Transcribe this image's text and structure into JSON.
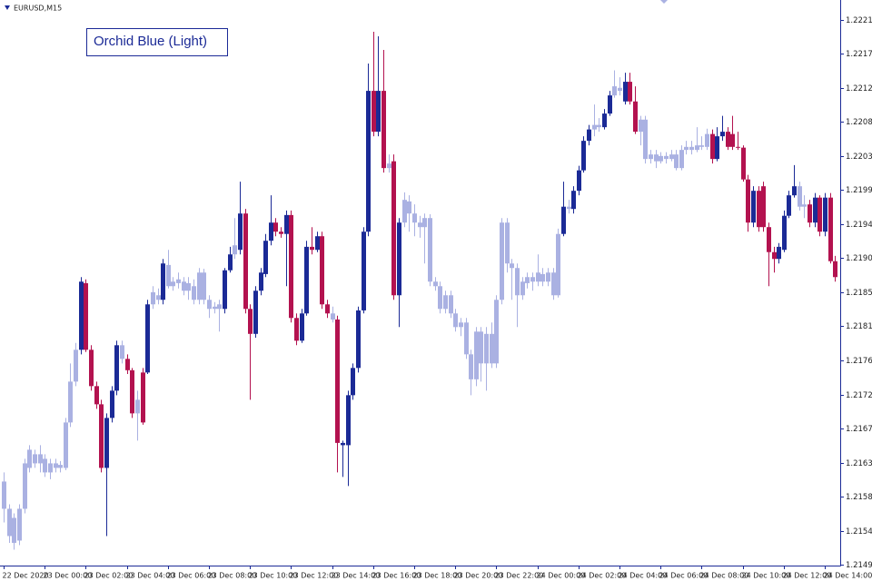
{
  "chart_data": {
    "type": "candlestick",
    "symbol": "EURUSD,M15",
    "title": "Orchid Blue (Light)",
    "categories": [
      "22 Dec 2020",
      null,
      null,
      null,
      null,
      null,
      null,
      null,
      "23 Dec 00:00",
      null,
      null,
      null,
      null,
      null,
      null,
      null,
      "23 Dec 02:00",
      null,
      null,
      null,
      null,
      null,
      null,
      null,
      "23 Dec 04:00",
      null,
      null,
      null,
      null,
      null,
      null,
      null,
      "23 Dec 06:00",
      null,
      null,
      null,
      null,
      null,
      null,
      null,
      "23 Dec 08:00",
      null,
      null,
      null,
      null,
      null,
      null,
      null,
      "23 Dec 10:00",
      null,
      null,
      null,
      null,
      null,
      null,
      null,
      "23 Dec 12:00",
      null,
      null,
      null,
      null,
      null,
      null,
      null,
      "23 Dec 14:00",
      null,
      null,
      null,
      null,
      null,
      null,
      null,
      "23 Dec 16:00",
      null,
      null,
      null,
      null,
      null,
      null,
      null,
      "23 Dec 18:00",
      null,
      null,
      null,
      null,
      null,
      null,
      null,
      "23 Dec 20:00",
      null,
      null,
      null,
      null,
      null,
      null,
      null,
      "23 Dec 22:00",
      null,
      null,
      null,
      null,
      null,
      null,
      null,
      "24 Dec 00:00",
      null,
      null,
      null,
      null,
      null,
      null,
      null,
      "24 Dec 02:00",
      null,
      null,
      null,
      null,
      null,
      null,
      null,
      "24 Dec 04:00",
      null,
      null,
      null,
      null,
      null,
      null,
      null,
      "24 Dec 06:00",
      null,
      null,
      null,
      null,
      null,
      null,
      null,
      "24 Dec 08:00",
      null,
      null,
      null,
      null,
      null,
      null,
      null,
      "24 Dec 10:00",
      null,
      null,
      null,
      null,
      null,
      null,
      null,
      "24 Dec 12:00",
      null,
      null,
      null,
      null,
      null,
      null,
      null,
      "24 Dec 14:00",
      null,
      null
    ],
    "values": [
      [
        1.21569,
        1.21617,
        1.21551,
        1.21605
      ],
      [
        1.21533,
        1.21575,
        1.21524,
        1.21569
      ],
      [
        1.21524,
        1.21563,
        1.21515,
        1.21557
      ],
      [
        1.21527,
        1.21575,
        1.21521,
        1.21569
      ],
      [
        1.21569,
        1.21635,
        1.21563,
        1.21629
      ],
      [
        1.21623,
        1.21653,
        1.21617,
        1.21647
      ],
      [
        1.21641,
        1.21647,
        1.21623,
        1.21629
      ],
      [
        1.21629,
        1.21653,
        1.21617,
        1.21641
      ],
      [
        1.21635,
        1.21641,
        1.21611,
        1.21617
      ],
      [
        1.21617,
        1.21635,
        1.21608,
        1.21629
      ],
      [
        1.21623,
        1.21635,
        1.21617,
        1.21629
      ],
      [
        1.21627,
        1.21632,
        1.21617,
        1.21623
      ],
      [
        1.21623,
        1.21689,
        1.2162,
        1.21683
      ],
      [
        1.21683,
        1.21761,
        1.21677,
        1.21737
      ],
      [
        1.21737,
        1.21788,
        1.21731,
        1.21779
      ],
      [
        1.21779,
        1.21875,
        1.21773,
        1.21869
      ],
      [
        1.21867,
        1.21872,
        1.21776,
        1.21779
      ],
      [
        1.21779,
        1.21785,
        1.21725,
        1.21731
      ],
      [
        1.21731,
        1.21737,
        1.21701,
        1.21707
      ],
      [
        1.21707,
        1.21713,
        1.21617,
        1.21623
      ],
      [
        1.21623,
        1.21695,
        1.21533,
        1.21689
      ],
      [
        1.21689,
        1.21731,
        1.21683,
        1.21725
      ],
      [
        1.21725,
        1.21791,
        1.21719,
        1.21785
      ],
      [
        1.21785,
        1.21791,
        1.21761,
        1.21767
      ],
      [
        1.21767,
        1.21773,
        1.21747,
        1.21752
      ],
      [
        1.21752,
        1.21755,
        1.21689,
        1.21695
      ],
      [
        1.21695,
        1.21725,
        1.21659,
        1.21713
      ],
      [
        1.21749,
        1.21755,
        1.2168,
        1.21683
      ],
      [
        1.21749,
        1.21845,
        1.21747,
        1.21839
      ],
      [
        1.21839,
        1.21863,
        1.21833,
        1.21855
      ],
      [
        1.21851,
        1.2186,
        1.21839,
        1.21845
      ],
      [
        1.21845,
        1.21899,
        1.21839,
        1.21893
      ],
      [
        1.21891,
        1.21911,
        1.2186,
        1.21863
      ],
      [
        1.21863,
        1.21875,
        1.21857,
        1.21869
      ],
      [
        1.21867,
        1.21881,
        1.2186,
        1.21872
      ],
      [
        1.21869,
        1.21875,
        1.21851,
        1.21857
      ],
      [
        1.21857,
        1.21875,
        1.21845,
        1.21867
      ],
      [
        1.21863,
        1.21872,
        1.21839,
        1.21845
      ],
      [
        1.21845,
        1.21887,
        1.21839,
        1.21881
      ],
      [
        1.21881,
        1.21886,
        1.21839,
        1.21845
      ],
      [
        1.21845,
        1.21851,
        1.21821,
        1.21833
      ],
      [
        1.21836,
        1.21842,
        1.21827,
        1.21833
      ],
      [
        1.21833,
        1.21845,
        1.21803,
        1.21839
      ],
      [
        1.21833,
        1.21887,
        1.21827,
        1.21884
      ],
      [
        1.21884,
        1.21915,
        1.21881,
        1.21905
      ],
      [
        1.21905,
        1.21953,
        1.21899,
        1.21917
      ],
      [
        1.21911,
        1.22001,
        1.21905,
        1.21959
      ],
      [
        1.21959,
        1.21965,
        1.21827,
        1.21833
      ],
      [
        1.21833,
        1.21839,
        1.21713,
        1.218
      ],
      [
        1.218,
        1.21863,
        1.21795,
        1.21857
      ],
      [
        1.21857,
        1.21887,
        1.21851,
        1.21881
      ],
      [
        1.21879,
        1.21932,
        1.21875,
        1.21923
      ],
      [
        1.21923,
        1.21983,
        1.21917,
        1.21947
      ],
      [
        1.21947,
        1.21953,
        1.21929,
        1.21935
      ],
      [
        1.21935,
        1.21941,
        1.21927,
        1.21932
      ],
      [
        1.21932,
        1.21963,
        1.21863,
        1.21957
      ],
      [
        1.21957,
        1.21963,
        1.21815,
        1.21821
      ],
      [
        1.21821,
        1.21827,
        1.21785,
        1.21791
      ],
      [
        1.21791,
        1.21833,
        1.21788,
        1.21827
      ],
      [
        1.21827,
        1.21923,
        1.21824,
        1.21915
      ],
      [
        1.21915,
        1.21941,
        1.21905,
        1.21911
      ],
      [
        1.21911,
        1.21935,
        1.21908,
        1.21929
      ],
      [
        1.21929,
        1.21935,
        1.21833,
        1.21839
      ],
      [
        1.21839,
        1.21845,
        1.21821,
        1.21827
      ],
      [
        1.21827,
        1.21836,
        1.21815,
        1.21819
      ],
      [
        1.21819,
        1.21824,
        1.21617,
        1.21656
      ],
      [
        1.21656,
        1.21659,
        1.21611,
        1.21653
      ],
      [
        1.21653,
        1.21725,
        1.21599,
        1.21719
      ],
      [
        1.21719,
        1.21761,
        1.21713,
        1.21755
      ],
      [
        1.21755,
        1.21836,
        1.21749,
        1.21831
      ],
      [
        1.21831,
        1.21941,
        1.21827,
        1.21935
      ],
      [
        1.21935,
        1.22157,
        1.21929,
        1.22121
      ],
      [
        1.22121,
        1.22199,
        1.22061,
        1.22067
      ],
      [
        1.22067,
        1.22193,
        1.22061,
        1.22121
      ],
      [
        1.22121,
        1.22175,
        1.22013,
        1.22019
      ],
      [
        1.22019,
        1.22037,
        1.22013,
        1.22025
      ],
      [
        1.22028,
        1.22037,
        1.21845,
        1.21851
      ],
      [
        1.21851,
        1.21953,
        1.21809,
        1.21947
      ],
      [
        1.21947,
        1.21987,
        1.21941,
        1.21977
      ],
      [
        1.21975,
        1.21983,
        1.21935,
        1.21959
      ],
      [
        1.21959,
        1.21971,
        1.21929,
        1.21947
      ],
      [
        1.21947,
        1.21956,
        1.21927,
        1.21941
      ],
      [
        1.21941,
        1.21959,
        1.21893,
        1.21953
      ],
      [
        1.21953,
        1.21958,
        1.21863,
        1.21869
      ],
      [
        1.21869,
        1.21875,
        1.21857,
        1.21863
      ],
      [
        1.21863,
        1.21869,
        1.21827,
        1.21833
      ],
      [
        1.21833,
        1.21857,
        1.21827,
        1.21851
      ],
      [
        1.21851,
        1.21857,
        1.21821,
        1.21827
      ],
      [
        1.21827,
        1.21833,
        1.21803,
        1.21809
      ],
      [
        1.21809,
        1.21821,
        1.21797,
        1.21815
      ],
      [
        1.21815,
        1.21821,
        1.21767,
        1.21773
      ],
      [
        1.21773,
        1.21779,
        1.21719,
        1.2174
      ],
      [
        1.2174,
        1.21809,
        1.21731,
        1.21803
      ],
      [
        1.21803,
        1.21809,
        1.21737,
        1.21761
      ],
      [
        1.21761,
        1.21809,
        1.21725,
        1.218
      ],
      [
        1.218,
        1.21815,
        1.21755,
        1.21761
      ],
      [
        1.21761,
        1.21851,
        1.21755,
        1.21845
      ],
      [
        1.21845,
        1.21953,
        1.21839,
        1.21947
      ],
      [
        1.21947,
        1.21953,
        1.21881,
        1.21893
      ],
      [
        1.21893,
        1.21899,
        1.21845,
        1.21887
      ],
      [
        1.21887,
        1.21893,
        1.21809,
        1.21851
      ],
      [
        1.21851,
        1.21875,
        1.21845,
        1.21869
      ],
      [
        1.21867,
        1.21881,
        1.2186,
        1.21875
      ],
      [
        1.21875,
        1.21881,
        1.21857,
        1.21869
      ],
      [
        1.21869,
        1.21905,
        1.21863,
        1.21881
      ],
      [
        1.21879,
        1.21887,
        1.21863,
        1.21869
      ],
      [
        1.21869,
        1.21887,
        1.21863,
        1.21881
      ],
      [
        1.21881,
        1.21887,
        1.21845,
        1.21851
      ],
      [
        1.21851,
        1.21939,
        1.21848,
        1.21932
      ],
      [
        1.21932,
        1.22001,
        1.21929,
        1.21968
      ],
      [
        1.21968,
        1.21977,
        1.21959,
        1.21965
      ],
      [
        1.21965,
        1.21995,
        1.21959,
        1.21989
      ],
      [
        1.21989,
        1.22022,
        1.21983,
        1.22016
      ],
      [
        1.22016,
        1.22061,
        1.22013,
        1.22055
      ],
      [
        1.22055,
        1.22076,
        1.22049,
        1.2207
      ],
      [
        1.2207,
        1.22103,
        1.22061,
        1.22076
      ],
      [
        1.22076,
        1.22085,
        1.22067,
        1.22073
      ],
      [
        1.22073,
        1.22097,
        1.2207,
        1.22091
      ],
      [
        1.22091,
        1.22121,
        1.22088,
        1.22115
      ],
      [
        1.22115,
        1.22148,
        1.22112,
        1.22127
      ],
      [
        1.22125,
        1.22139,
        1.22115,
        1.22121
      ],
      [
        1.22107,
        1.22145,
        1.22103,
        1.22133
      ],
      [
        1.22133,
        1.22145,
        1.22103,
        1.22107
      ],
      [
        1.22107,
        1.22127,
        1.22064,
        1.22067
      ],
      [
        1.22067,
        1.22088,
        1.22049,
        1.22083
      ],
      [
        1.22083,
        1.22088,
        1.22025,
        1.22031
      ],
      [
        1.22031,
        1.22043,
        1.22025,
        1.22037
      ],
      [
        1.22037,
        1.22043,
        1.22019,
        1.22028
      ],
      [
        1.22028,
        1.2204,
        1.22025,
        1.22035
      ],
      [
        1.22035,
        1.2204,
        1.22025,
        1.22031
      ],
      [
        1.22031,
        1.22043,
        1.22028,
        1.22037
      ],
      [
        1.22037,
        1.22043,
        1.22016,
        1.22019
      ],
      [
        1.22019,
        1.22049,
        1.22016,
        1.22043
      ],
      [
        1.22043,
        1.22055,
        1.22037,
        1.22047
      ],
      [
        1.22047,
        1.22055,
        1.22037,
        1.22043
      ],
      [
        1.22043,
        1.22073,
        1.2204,
        1.22049
      ],
      [
        1.22049,
        1.22061,
        1.22043,
        1.22047
      ],
      [
        1.22047,
        1.22071,
        1.22043,
        1.22064
      ],
      [
        1.22064,
        1.2207,
        1.22025,
        1.22031
      ],
      [
        1.22031,
        1.22073,
        1.22028,
        1.22061
      ],
      [
        1.22061,
        1.22088,
        1.22055,
        1.22067
      ],
      [
        1.22067,
        1.22073,
        1.22043,
        1.22047
      ],
      [
        1.22064,
        1.22088,
        1.22043,
        1.22047
      ],
      [
        1.22047,
        1.22067,
        1.22043,
        1.22046
      ],
      [
        1.22046,
        1.22049,
        1.22001,
        1.22004
      ],
      [
        1.22004,
        1.2201,
        1.21935,
        1.21947
      ],
      [
        1.21947,
        1.21995,
        1.21941,
        1.21989
      ],
      [
        1.21989,
        1.21995,
        1.21935,
        1.21941
      ],
      [
        1.21995,
        1.22001,
        1.21935,
        1.21941
      ],
      [
        1.21941,
        1.21947,
        1.21863,
        1.21908
      ],
      [
        1.21908,
        1.21915,
        1.21881,
        1.21899
      ],
      [
        1.21899,
        1.2192,
        1.21893,
        1.21915
      ],
      [
        1.21911,
        1.21963,
        1.21908,
        1.21956
      ],
      [
        1.21956,
        1.21989,
        1.21953,
        1.21983
      ],
      [
        1.21983,
        1.22023,
        1.2198,
        1.21995
      ],
      [
        1.21995,
        1.22001,
        1.21963,
        1.21968
      ],
      [
        1.21968,
        1.21983,
        1.21953,
        1.21971
      ],
      [
        1.21971,
        1.21977,
        1.21941,
        1.21947
      ],
      [
        1.21947,
        1.21986,
        1.21941,
        1.2198
      ],
      [
        1.2198,
        1.21983,
        1.21929,
        1.21935
      ],
      [
        1.21935,
        1.21986,
        1.21929,
        1.2198
      ],
      [
        1.2198,
        1.21986,
        1.21893,
        1.21896
      ],
      [
        1.21896,
        1.21903,
        1.21869,
        1.21875
      ]
    ],
    "candle_colors": [
      "#aab1e2",
      "#aab1e2",
      "#aab1e2",
      "#aab1e2",
      "#aab1e2",
      "#aab1e2",
      "#aab1e2",
      "#aab1e2",
      "#aab1e2",
      "#aab1e2",
      "#aab1e2",
      "#aab1e2",
      "#aab1e2",
      "#aab1e2",
      "#aab1e2",
      "#1b2a96",
      "#b3124f",
      "#b3124f",
      "#b3124f",
      "#b3124f",
      "#1b2a96",
      "#1b2a96",
      "#1b2a96",
      "#aab1e2",
      "#b3124f",
      "#b3124f",
      "#aab1e2",
      "#b3124f",
      "#1b2a96",
      "#aab1e2",
      "#aab1e2",
      "#1b2a96",
      "#aab1e2",
      "#aab1e2",
      "#aab1e2",
      "#aab1e2",
      "#aab1e2",
      "#aab1e2",
      "#aab1e2",
      "#aab1e2",
      "#aab1e2",
      "#aab1e2",
      "#aab1e2",
      "#1b2a96",
      "#1b2a96",
      "#aab1e2",
      "#1b2a96",
      "#b3124f",
      "#b3124f",
      "#1b2a96",
      "#1b2a96",
      "#1b2a96",
      "#1b2a96",
      "#b3124f",
      "#b3124f",
      "#1b2a96",
      "#b3124f",
      "#b3124f",
      "#1b2a96",
      "#1b2a96",
      "#b3124f",
      "#1b2a96",
      "#b3124f",
      "#b3124f",
      "#aab1e2",
      "#b3124f",
      "#1b2a96",
      "#1b2a96",
      "#1b2a96",
      "#1b2a96",
      "#1b2a96",
      "#1b2a96",
      "#b3124f",
      "#1b2a96",
      "#b3124f",
      "#aab1e2",
      "#b3124f",
      "#1b2a96",
      "#aab1e2",
      "#aab1e2",
      "#aab1e2",
      "#aab1e2",
      "#aab1e2",
      "#aab1e2",
      "#aab1e2",
      "#aab1e2",
      "#aab1e2",
      "#aab1e2",
      "#aab1e2",
      "#aab1e2",
      "#aab1e2",
      "#aab1e2",
      "#aab1e2",
      "#aab1e2",
      "#aab1e2",
      "#aab1e2",
      "#aab1e2",
      "#aab1e2",
      "#aab1e2",
      "#aab1e2",
      "#aab1e2",
      "#aab1e2",
      "#aab1e2",
      "#aab1e2",
      "#aab1e2",
      "#aab1e2",
      "#aab1e2",
      "#aab1e2",
      "#aab1e2",
      "#1b2a96",
      "#aab1e2",
      "#1b2a96",
      "#1b2a96",
      "#1b2a96",
      "#1b2a96",
      "#aab1e2",
      "#aab1e2",
      "#1b2a96",
      "#1b2a96",
      "#aab1e2",
      "#aab1e2",
      "#1b2a96",
      "#b3124f",
      "#b3124f",
      "#aab1e2",
      "#aab1e2",
      "#aab1e2",
      "#aab1e2",
      "#aab1e2",
      "#aab1e2",
      "#aab1e2",
      "#aab1e2",
      "#aab1e2",
      "#aab1e2",
      "#aab1e2",
      "#aab1e2",
      "#aab1e2",
      "#aab1e2",
      "#b3124f",
      "#1b2a96",
      "#1b2a96",
      "#b3124f",
      "#b3124f",
      "#b3124f",
      "#b3124f",
      "#b3124f",
      "#1b2a96",
      "#b3124f",
      "#b3124f",
      "#b3124f",
      "#b3124f",
      "#1b2a96",
      "#1b2a96",
      "#1b2a96",
      "#1b2a96",
      "#aab1e2",
      "#aab1e2",
      "#b3124f",
      "#1b2a96",
      "#b3124f",
      "#1b2a96",
      "#b3124f",
      "#b3124f"
    ],
    "ylim": [
      1.21494,
      1.22241
    ],
    "yticks": [
      1.22215,
      {
        "value": 1.2217,
        "label": "1.22170"
      },
      1.22125,
      {
        "value": 1.2208,
        "label": "1.22080"
      },
      1.22035,
      {
        "value": 1.2199,
        "label": "1.21990"
      },
      1.21945,
      {
        "value": 1.219,
        "label": "1.21900"
      },
      1.21855,
      {
        "value": 1.2181,
        "label": "1.21810"
      },
      1.21765,
      {
        "value": 1.2172,
        "label": "1.21720"
      },
      1.21675,
      {
        "value": 1.2163,
        "label": "1.21630"
      },
      1.21585,
      {
        "value": 1.2154,
        "label": "1.21540"
      },
      1.21495
    ],
    "axis_color": "#1b2a96"
  }
}
